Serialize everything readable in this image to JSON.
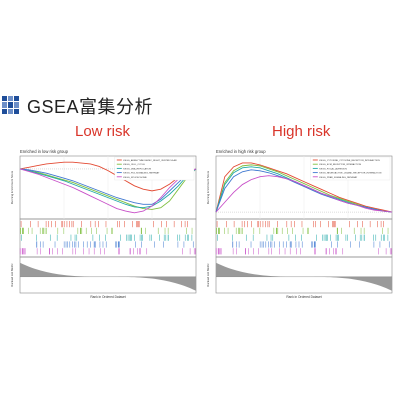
{
  "header": {
    "title": "GSEA富集分析",
    "icon": "grid-logo-icon",
    "icon_color": "#1f4e9a"
  },
  "low_risk_label": "Low risk",
  "high_risk_label": "High risk",
  "label_color": "#d9352a",
  "chart_data": [
    {
      "type": "line",
      "title": "Enriched in low risk group",
      "ylabel": "Running Enrichment Score",
      "lower_ylabel": "Ranked List Metric",
      "xlabel": "Rank in Ordered Dataset",
      "x": [
        0,
        0.05,
        0.1,
        0.15,
        0.2,
        0.25,
        0.3,
        0.35,
        0.4,
        0.45,
        0.5,
        0.55,
        0.6,
        0.65,
        0.7,
        0.75,
        0.8,
        0.85,
        0.9,
        0.95,
        1.0
      ],
      "series": [
        {
          "name": "KEGG_ARRHYTHMOGENIC_RIGHT_VENTRICULAR",
          "color": "#e34a33",
          "values": [
            0,
            0.02,
            0.04,
            0.06,
            0.07,
            0.08,
            0.08,
            0.07,
            0.06,
            0.03,
            -0.02,
            -0.08,
            -0.14,
            -0.2,
            -0.24,
            -0.26,
            -0.24,
            -0.18,
            -0.1,
            -0.04,
            0
          ]
        },
        {
          "name": "KEGG_CELL_CYCLE",
          "color": "#7fbf3f",
          "values": [
            0,
            -0.02,
            -0.04,
            -0.07,
            -0.1,
            -0.13,
            -0.16,
            -0.2,
            -0.24,
            -0.28,
            -0.32,
            -0.36,
            -0.4,
            -0.44,
            -0.47,
            -0.48,
            -0.46,
            -0.38,
            -0.24,
            -0.1,
            0
          ]
        },
        {
          "name": "KEGG_DNA_REPLICATION",
          "color": "#21a8a8",
          "values": [
            0,
            -0.02,
            -0.05,
            -0.08,
            -0.11,
            -0.14,
            -0.18,
            -0.22,
            -0.26,
            -0.3,
            -0.34,
            -0.38,
            -0.42,
            -0.45,
            -0.46,
            -0.44,
            -0.38,
            -0.3,
            -0.2,
            -0.08,
            0
          ]
        },
        {
          "name": "KEGG_P53_SIGNALING_PATHWAY",
          "color": "#3f78d0",
          "values": [
            0,
            -0.01,
            -0.03,
            -0.05,
            -0.08,
            -0.11,
            -0.14,
            -0.18,
            -0.22,
            -0.26,
            -0.3,
            -0.34,
            -0.37,
            -0.4,
            -0.42,
            -0.42,
            -0.36,
            -0.26,
            -0.16,
            -0.06,
            0
          ]
        },
        {
          "name": "KEGG_SPLICEOSOME",
          "color": "#c850c8",
          "values": [
            0,
            -0.03,
            -0.06,
            -0.1,
            -0.14,
            -0.18,
            -0.22,
            -0.27,
            -0.32,
            -0.37,
            -0.42,
            -0.47,
            -0.5,
            -0.52,
            -0.5,
            -0.44,
            -0.34,
            -0.22,
            -0.12,
            -0.04,
            0
          ]
        }
      ]
    },
    {
      "type": "line",
      "title": "Enriched in high risk group",
      "ylabel": "Running Enrichment Score",
      "lower_ylabel": "Ranked List Metric",
      "xlabel": "Rank in Ordered Dataset",
      "x": [
        0,
        0.05,
        0.1,
        0.15,
        0.2,
        0.25,
        0.3,
        0.35,
        0.4,
        0.45,
        0.5,
        0.55,
        0.6,
        0.65,
        0.7,
        0.75,
        0.8,
        0.85,
        0.9,
        0.95,
        1.0
      ],
      "series": [
        {
          "name": "KEGG_CYTOKINE_CYTOKINE_RECEPTOR_INTERACTION",
          "color": "#e34a33",
          "values": [
            0,
            0.36,
            0.46,
            0.5,
            0.5,
            0.48,
            0.45,
            0.42,
            0.39,
            0.35,
            0.31,
            0.27,
            0.23,
            0.19,
            0.15,
            0.12,
            0.09,
            0.06,
            0.04,
            0.02,
            0
          ]
        },
        {
          "name": "KEGG_ECM_RECEPTOR_INTERACTION",
          "color": "#7fbf3f",
          "values": [
            0,
            0.3,
            0.42,
            0.47,
            0.48,
            0.47,
            0.44,
            0.41,
            0.37,
            0.33,
            0.29,
            0.25,
            0.21,
            0.17,
            0.14,
            0.11,
            0.08,
            0.05,
            0.03,
            0.01,
            0
          ]
        },
        {
          "name": "KEGG_FOCAL_ADHESION",
          "color": "#21a8a8",
          "values": [
            0,
            0.28,
            0.4,
            0.45,
            0.46,
            0.45,
            0.42,
            0.39,
            0.35,
            0.31,
            0.27,
            0.23,
            0.19,
            0.16,
            0.13,
            0.1,
            0.07,
            0.05,
            0.03,
            0.01,
            0
          ]
        },
        {
          "name": "KEGG_NEUROACTIVE_LIGAND_RECEPTOR_INTERACTION",
          "color": "#3f78d0",
          "values": [
            0,
            0.24,
            0.36,
            0.41,
            0.43,
            0.42,
            0.4,
            0.37,
            0.34,
            0.3,
            0.26,
            0.22,
            0.18,
            0.15,
            0.12,
            0.09,
            0.07,
            0.05,
            0.03,
            0.01,
            0
          ]
        },
        {
          "name": "KEGG_PPAR_SIGNALING_PATHWAY",
          "color": "#c850c8",
          "values": [
            0,
            0.1,
            0.2,
            0.28,
            0.33,
            0.36,
            0.37,
            0.36,
            0.34,
            0.31,
            0.27,
            0.23,
            0.19,
            0.16,
            0.12,
            0.09,
            0.07,
            0.04,
            0.02,
            0.01,
            0
          ]
        }
      ]
    }
  ]
}
